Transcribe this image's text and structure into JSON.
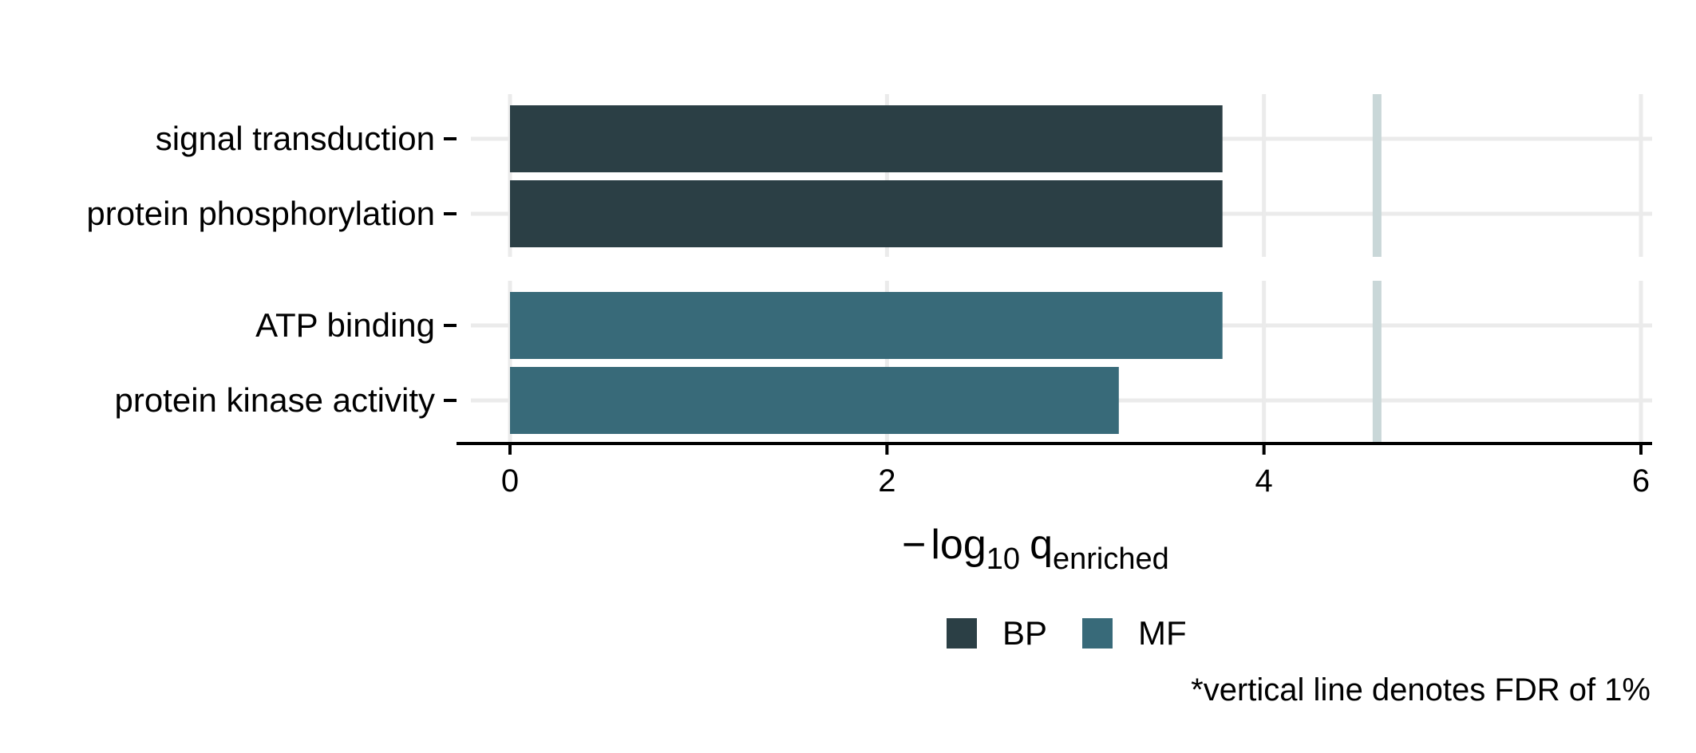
{
  "chart_data": {
    "type": "bar",
    "orientation": "horizontal",
    "title": "",
    "xlabel": {
      "minus": "−",
      "log": "log",
      "log_sub": "10",
      "q": "q",
      "q_sub": "enriched"
    },
    "ylabel": "",
    "xlim": [
      0,
      6
    ],
    "x_ticks": [
      "0",
      "2",
      "4",
      "6"
    ],
    "grid": true,
    "facets": [
      {
        "group": "BP",
        "categories": [
          "signal transduction",
          "protein phosphorylation"
        ],
        "values": [
          3.78,
          3.78
        ]
      },
      {
        "group": "MF",
        "categories": [
          "ATP binding",
          "protein kinase activity"
        ],
        "values": [
          3.78,
          3.23
        ]
      }
    ],
    "reference_line": {
      "x": 4.6,
      "color": "#c9d7d8"
    },
    "legend": {
      "placement": "bottom",
      "items": [
        {
          "name": "BP",
          "color": "#2b3f45"
        },
        {
          "name": "MF",
          "color": "#386a79"
        }
      ]
    },
    "caption": "*vertical line denotes FDR of 1%",
    "colors": {
      "grid": "#ebebeb",
      "axis": "#000000"
    }
  }
}
